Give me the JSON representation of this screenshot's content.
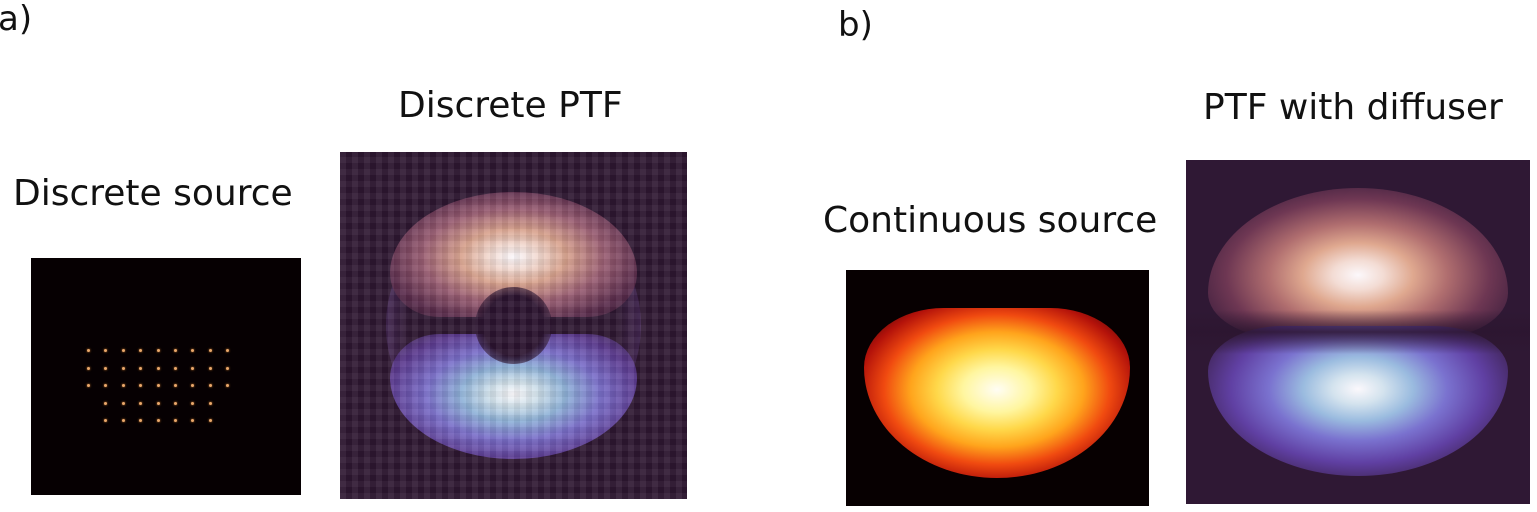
{
  "panel_a": {
    "tag": "a)",
    "source_title": "Discrete source",
    "ptf_title": "Discrete PTF"
  },
  "panel_b": {
    "tag": "b)",
    "source_title": "Continuous source",
    "ptf_title": "PTF with diffuser"
  },
  "colors": {
    "background": "#ffffff",
    "source_bg": "#060002",
    "source_dot": "#e9a86b",
    "ptf_bg": "#2e1731",
    "warm_lobe": "#f2d9d0",
    "cool_lobe": "#8fb2d8",
    "continuous_core": "#fff6a0"
  },
  "dot_grid": {
    "rows": [
      9,
      9,
      9,
      7,
      7
    ],
    "row_offsets": [
      0,
      0,
      0,
      1,
      1
    ]
  }
}
